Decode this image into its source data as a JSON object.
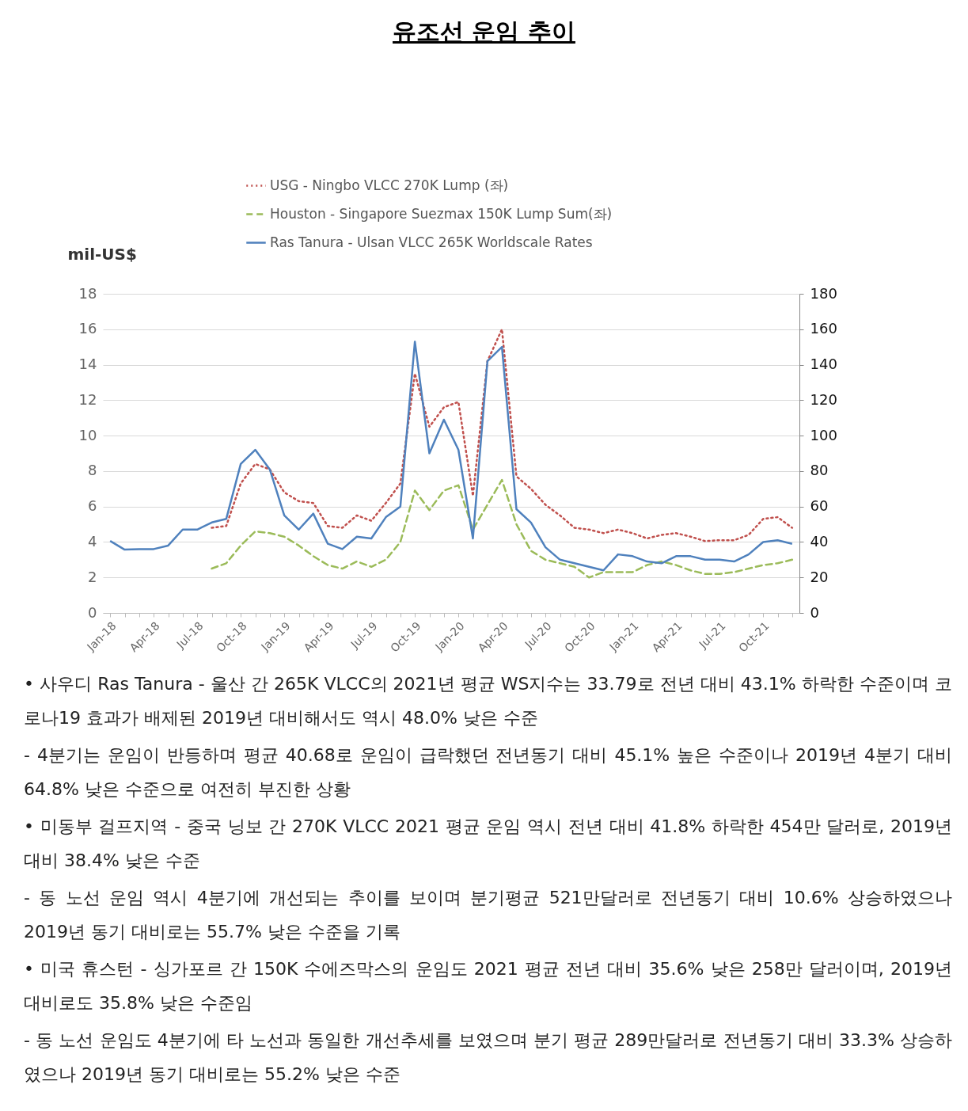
{
  "chart_data": {
    "type": "line",
    "title": "유조선 운임 추이",
    "ylabel": "mil-US$",
    "categories": [
      "Jan-18",
      null,
      null,
      "Apr-18",
      null,
      null,
      "Jul-18",
      null,
      null,
      "Oct-18",
      null,
      null,
      "Jan-19",
      null,
      null,
      "Apr-19",
      null,
      null,
      "Jul-19",
      null,
      null,
      "Oct-19",
      null,
      null,
      "Jan-20",
      null,
      null,
      "Apr-20",
      null,
      null,
      "Jul-20",
      null,
      null,
      "Oct-20",
      null,
      null,
      "Jan-21",
      null,
      null,
      "Apr-21",
      null,
      null,
      "Jul-21",
      null,
      null,
      "Oct-21",
      null,
      null
    ],
    "series": [
      {
        "name": "USG - Ningbo VLCC 270K Lump (좌)",
        "color": "#c0504d",
        "line_style": "dotted",
        "values": [
          null,
          null,
          null,
          null,
          null,
          null,
          null,
          4.8,
          4.9,
          7.3,
          8.4,
          8.1,
          6.8,
          6.3,
          6.2,
          4.9,
          4.8,
          5.5,
          5.2,
          6.2,
          7.3,
          13.5,
          10.5,
          11.6,
          11.9,
          6.6,
          14.2,
          16.0,
          7.7,
          7.0,
          6.1,
          5.5,
          4.8,
          4.7,
          4.5,
          4.7,
          4.5,
          4.2,
          4.4,
          4.5,
          4.3,
          4.05,
          4.1,
          4.1,
          4.4,
          5.3,
          5.4,
          4.8
        ]
      },
      {
        "name": "Houston - Singapore Suezmax 150K Lump Sum(좌)",
        "color": "#9bbb59",
        "line_style": "dashed",
        "values": [
          null,
          null,
          null,
          null,
          null,
          null,
          null,
          2.5,
          2.8,
          3.8,
          4.6,
          4.5,
          4.3,
          3.8,
          3.2,
          2.7,
          2.5,
          2.9,
          2.6,
          3.0,
          4.0,
          6.9,
          5.8,
          6.9,
          7.2,
          4.7,
          6.1,
          7.5,
          5.0,
          3.5,
          3.0,
          2.8,
          2.6,
          2.0,
          2.3,
          2.3,
          2.3,
          2.7,
          2.9,
          2.7,
          2.4,
          2.2,
          2.2,
          2.3,
          2.5,
          2.7,
          2.8,
          3.0
        ]
      },
      {
        "name": "Ras Tanura - Ulsan VLCC 265K Worldscale Rates",
        "color": "#4f81bd",
        "line_style": "solid",
        "axis": "y2",
        "values": [
          40.6,
          35.7,
          36,
          36,
          38,
          47,
          47,
          51,
          53,
          84,
          92,
          81,
          55,
          47,
          56,
          39,
          36,
          43,
          42,
          54,
          60,
          153,
          90,
          109,
          92,
          42,
          142,
          150,
          58.5,
          51,
          37,
          30,
          28,
          26,
          24,
          33,
          32,
          29,
          28,
          32,
          32,
          30,
          30,
          29,
          33,
          40,
          41,
          39
        ]
      }
    ],
    "ylim": [
      0,
      18
    ],
    "yticks": [
      0,
      2,
      4,
      6,
      8,
      10,
      12,
      14,
      16,
      18
    ],
    "y2lim": [
      0,
      180
    ],
    "y2ticks": [
      0,
      20,
      40,
      60,
      80,
      100,
      120,
      140,
      160,
      180
    ],
    "grid": "y",
    "legend": "top",
    "annotations": [
      "• 사우디 Ras Tanura - 울산 간 265K VLCC의 2021년 평균 WS지수는 33.79로 전년 대비 43.1% 하락한 수준이며 코로나19 효과가 배제된 2019년 대비해서도 역시 48.0% 낮은 수준",
      "- 4분기는 운임이 반등하며 평균 40.68로 운임이 급락했던 전년동기 대비 45.1% 높은 수준이나 2019년 4분기 대비 64.8% 낮은 수준으로 여전히 부진한 상황",
      "• 미동부 걸프지역 - 중국 닝보 간 270K VLCC 2021 평균 운임 역시 전년 대비 41.8% 하락한 454만 달러로, 2019년 대비 38.4% 낮은 수준",
      "- 동 노선 운임 역시 4분기에 개선되는 추이를 보이며 분기평균 521만달러로 전년동기 대비 10.6% 상승하였으나 2019년 동기 대비로는 55.7% 낮은 수준을 기록",
      "• 미국 휴스턴 - 싱가포르 간 150K 수에즈막스의 운임도 2021 평균 전년 대비 35.6% 낮은 258만 달러이며, 2019년 대비로도 35.8% 낮은 수준임",
      "- 동 노선 운임도 4분기에 타 노선과 동일한 개선추세를 보였으며 분기 평균 289만달러로 전년동기 대비 33.3% 상승하였으나 2019년 동기 대비로는 55.2% 낮은 수준"
    ]
  }
}
